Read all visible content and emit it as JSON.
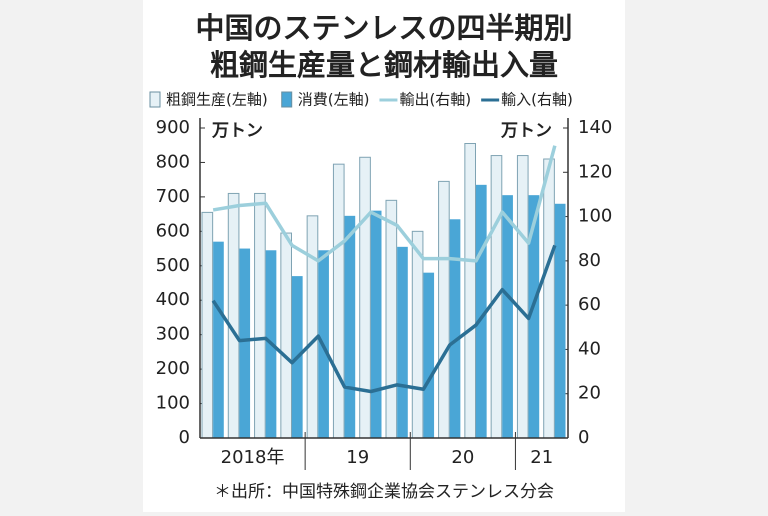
{
  "chart_data": {
    "type": "bar_line",
    "title": [
      "中国のステンレスの四半期別",
      "粗鋼生産量と鋼材輸出入量"
    ],
    "y_unit": "万トン",
    "y2_unit": "万トン",
    "note": "＊出所：中国特殊鋼企業協会ステンレス分会",
    "categories": [
      "2018年",
      null,
      null,
      null,
      "19",
      null,
      null,
      null,
      "20",
      null,
      null,
      null,
      "21",
      null
    ],
    "series": [
      {
        "name": "粗鋼生産(左軸)",
        "type": "bar",
        "color": "#e6f1f6",
        "values": [
          655,
          710,
          710,
          595,
          645,
          795,
          815,
          690,
          600,
          745,
          855,
          820,
          820,
          810
        ]
      },
      {
        "name": "消費(左軸)",
        "type": "bar",
        "color": "#4aa6d6",
        "values": [
          570,
          550,
          545,
          470,
          545,
          645,
          660,
          555,
          480,
          635,
          735,
          705,
          705,
          680
        ]
      },
      {
        "name": "輸出(右軸)",
        "type": "line",
        "axis": "y2",
        "color": "#9ccfdc",
        "values": [
          103,
          105,
          106,
          87,
          80,
          89,
          102,
          96,
          81,
          81,
          80,
          102,
          88,
          132
        ]
      },
      {
        "name": "輸入(右軸)",
        "type": "line",
        "axis": "y2",
        "color": "#2b6f94",
        "values": [
          62,
          44,
          45,
          34,
          46,
          23,
          21,
          24,
          22,
          42,
          51,
          67,
          54,
          87
        ]
      }
    ],
    "ylim": [
      0,
      900
    ],
    "yticks": [
      0,
      100,
      200,
      300,
      400,
      500,
      600,
      700,
      800,
      900
    ],
    "y2lim": [
      0,
      140
    ],
    "y2ticks": [
      0,
      20,
      40,
      60,
      80,
      100,
      120,
      140
    ]
  }
}
